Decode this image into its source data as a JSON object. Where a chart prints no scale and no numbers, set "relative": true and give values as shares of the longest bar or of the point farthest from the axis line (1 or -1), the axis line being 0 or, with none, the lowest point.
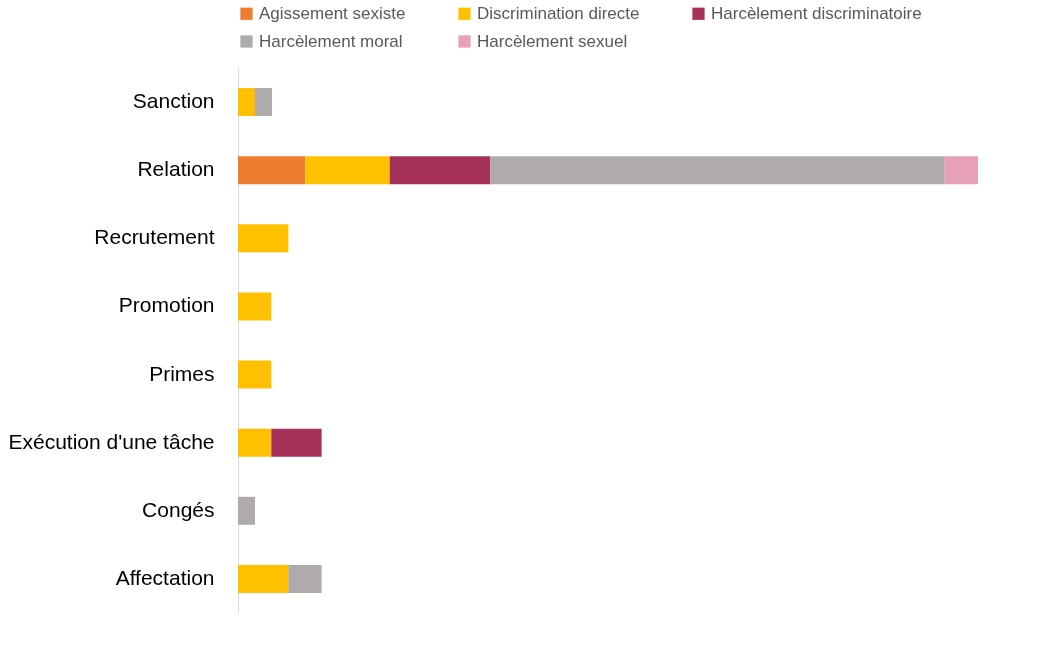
{
  "chart_data": {
    "type": "bar",
    "orientation": "horizontal",
    "stacked": true,
    "relative": true,
    "legend": "top",
    "categories": [
      "Sanction",
      "Relation",
      "Recrutement",
      "Promotion",
      "Primes",
      "Exécution d'une tâche",
      "Congés",
      "Affectation"
    ],
    "series": [
      {
        "name": "Agissement sexiste",
        "color": "#ed7d31",
        "values": [
          null,
          0.091,
          null,
          null,
          null,
          null,
          null,
          null
        ]
      },
      {
        "name": "Discrimination directe",
        "color": "#ffc000",
        "values": [
          0.023,
          0.114,
          0.068,
          0.045,
          0.045,
          0.045,
          null,
          0.068
        ]
      },
      {
        "name": "Harcèlement discriminatoire",
        "color": "#a5305a",
        "values": [
          null,
          0.136,
          null,
          null,
          null,
          0.068,
          null,
          null
        ]
      },
      {
        "name": "Harcèlement moral",
        "color": "#afabab",
        "values": [
          0.023,
          0.614,
          null,
          null,
          null,
          null,
          0.023,
          0.045
        ]
      },
      {
        "name": "Harcèlement sexuel",
        "color": "#e6a0b9",
        "values": [
          null,
          0.045,
          null,
          null,
          null,
          null,
          null,
          null
        ]
      }
    ]
  }
}
